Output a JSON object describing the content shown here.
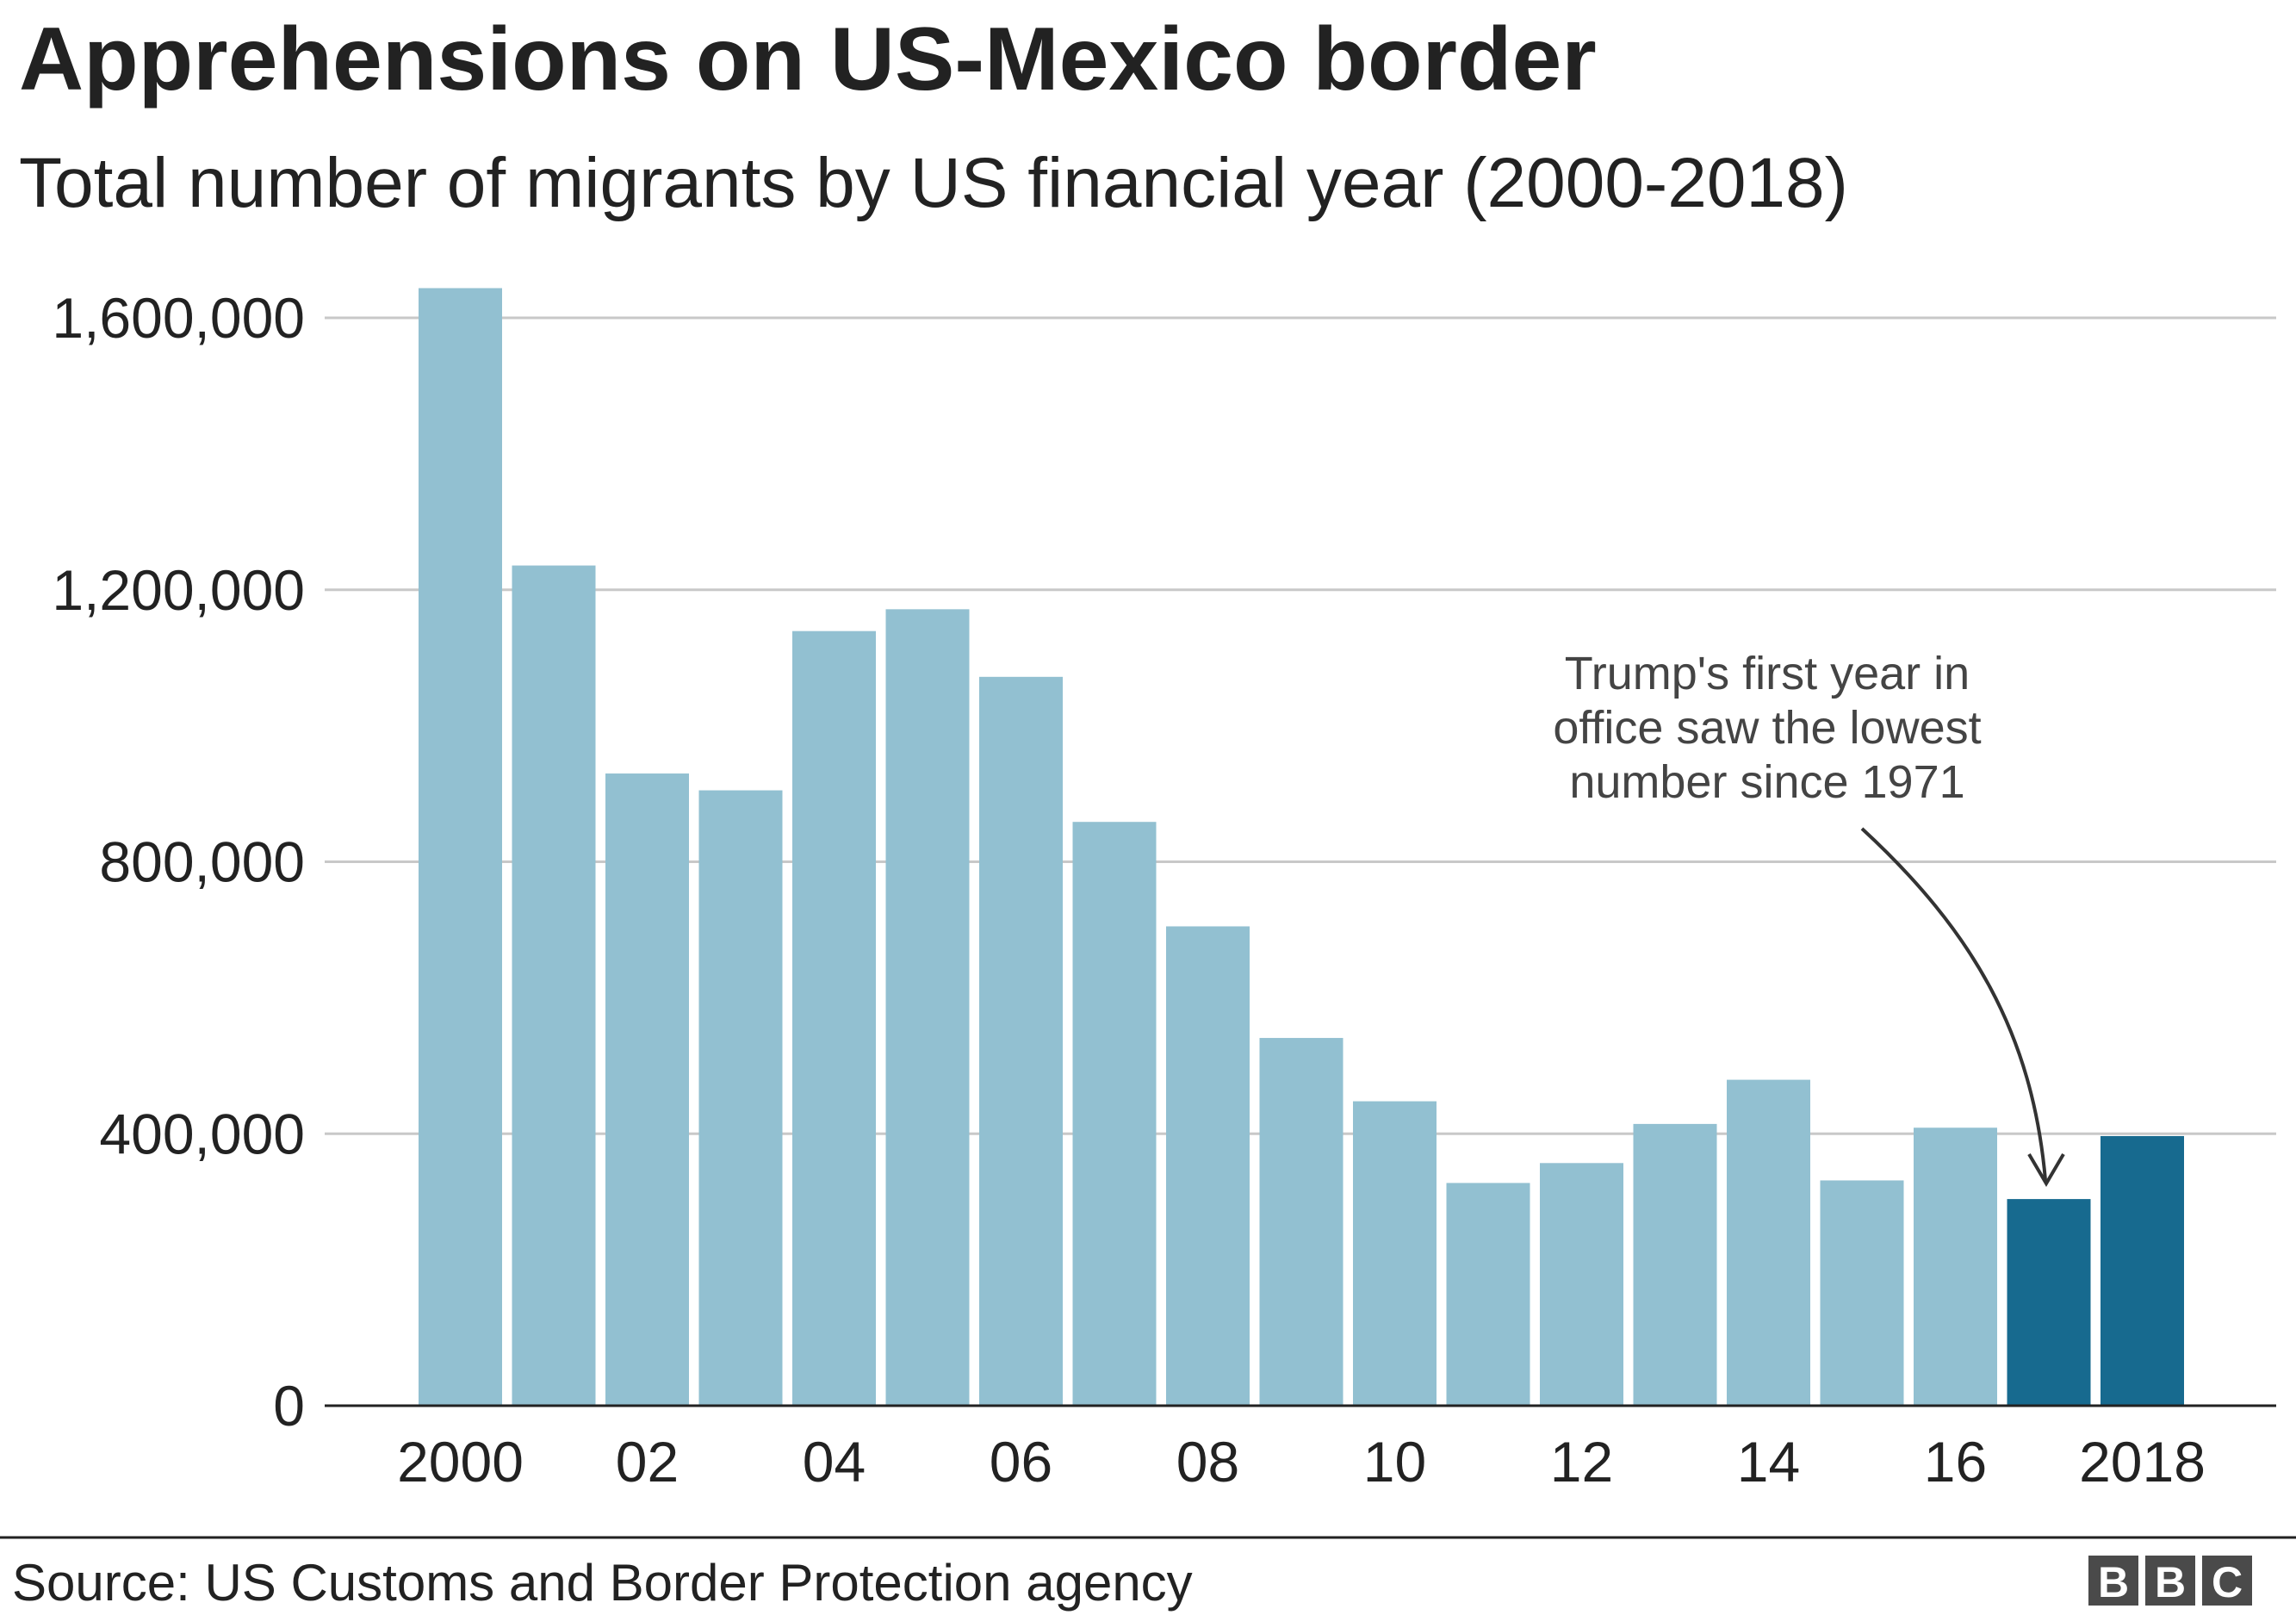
{
  "title": "Apprehensions on US-Mexico border",
  "subtitle": "Total number of migrants by US financial year (2000-2018)",
  "source": "Source: US Customs and Border Protection agency",
  "logo": "BBC",
  "colors": {
    "normal": "#92c0d1",
    "highlight": "#176a8f",
    "grid": "#c8c8c8",
    "axis": "#222222"
  },
  "chart_data": {
    "type": "bar",
    "title": "Apprehensions on US-Mexico border",
    "xlabel": "",
    "ylabel": "",
    "ylim": [
      0,
      1600000
    ],
    "grid": true,
    "categories": [
      "2000",
      "2001",
      "2002",
      "2003",
      "2004",
      "2005",
      "2006",
      "2007",
      "2008",
      "2009",
      "2010",
      "2011",
      "2012",
      "2013",
      "2014",
      "2015",
      "2016",
      "2017",
      "2018"
    ],
    "values": [
      1643679,
      1235718,
      929809,
      905065,
      1139282,
      1171396,
      1071972,
      858638,
      705005,
      540865,
      447731,
      327577,
      356873,
      414397,
      479371,
      331333,
      408870,
      303916,
      396579
    ],
    "highlighted": [
      "2017",
      "2018"
    ],
    "y_ticks": [
      {
        "value": 0,
        "label": "0"
      },
      {
        "value": 400000,
        "label": "400,000"
      },
      {
        "value": 800000,
        "label": "800,000"
      },
      {
        "value": 1200000,
        "label": "1,200,000"
      },
      {
        "value": 1600000,
        "label": "1,600,000"
      }
    ],
    "x_ticks": [
      {
        "category": "2000",
        "label": "2000"
      },
      {
        "category": "2002",
        "label": "02"
      },
      {
        "category": "2004",
        "label": "04"
      },
      {
        "category": "2006",
        "label": "06"
      },
      {
        "category": "2008",
        "label": "08"
      },
      {
        "category": "2010",
        "label": "10"
      },
      {
        "category": "2012",
        "label": "12"
      },
      {
        "category": "2014",
        "label": "14"
      },
      {
        "category": "2016",
        "label": "16"
      },
      {
        "category": "2018",
        "label": "2018"
      }
    ],
    "annotation": {
      "target": "2017",
      "lines": [
        "Trump's first year in",
        "office saw the lowest",
        "number since 1971"
      ]
    }
  }
}
